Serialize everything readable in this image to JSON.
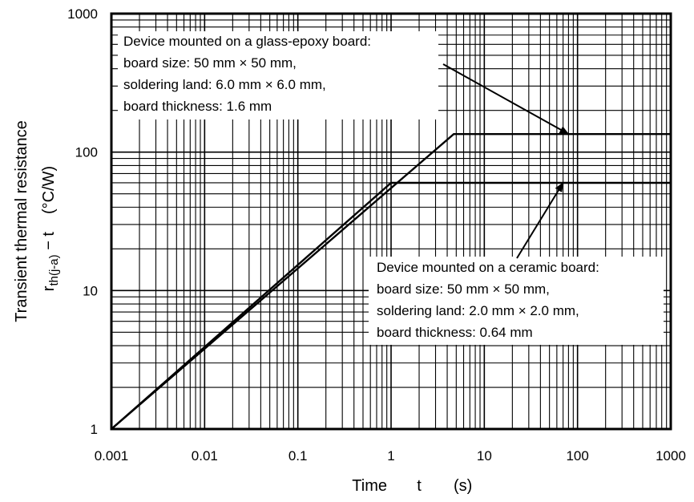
{
  "chart_data": {
    "type": "line",
    "xscale": "log",
    "yscale": "log",
    "xlim": [
      0.001,
      1000
    ],
    "ylim": [
      1,
      1000
    ],
    "grid": true,
    "xlabel": {
      "main": "Time",
      "symbol": "t",
      "unit": "(s)"
    },
    "ylabel": {
      "line1": "Transient thermal resistance",
      "symbol": "r",
      "subscript": "th(j-a)",
      "suffix": " − t",
      "unit": "(°C/W)"
    },
    "xticks": [
      {
        "value": 0.001,
        "label": "0.001"
      },
      {
        "value": 0.01,
        "label": "0.01"
      },
      {
        "value": 0.1,
        "label": "0.1"
      },
      {
        "value": 1,
        "label": "1"
      },
      {
        "value": 10,
        "label": "10"
      },
      {
        "value": 100,
        "label": "100"
      },
      {
        "value": 1000,
        "label": "1000"
      }
    ],
    "yticks": [
      {
        "value": 1,
        "label": "1"
      },
      {
        "value": 10,
        "label": "10"
      },
      {
        "value": 100,
        "label": "100"
      },
      {
        "value": 1000,
        "label": "1000"
      }
    ],
    "series": [
      {
        "points": [
          [
            0.001,
            1
          ],
          [
            4.7,
            135
          ],
          [
            1000,
            135
          ]
        ]
      },
      {
        "points": [
          [
            0.001,
            1
          ],
          [
            1.0,
            60
          ],
          [
            1000,
            60
          ]
        ]
      }
    ],
    "annotations": [
      {
        "lines": [
          "Device mounted on a glass-epoxy board:",
          "board size: 50 mm × 50 mm,",
          "soldering land: 6.0 mm × 6.0 mm,",
          "board thickness: 1.6 mm"
        ],
        "points_to": [
          80,
          135
        ]
      },
      {
        "lines": [
          "Device mounted on a ceramic board:",
          "board size: 50 mm × 50 mm,",
          "soldering land: 2.0 mm × 2.0 mm,",
          "board thickness: 0.64 mm"
        ],
        "points_to": [
          70,
          60
        ]
      }
    ]
  }
}
